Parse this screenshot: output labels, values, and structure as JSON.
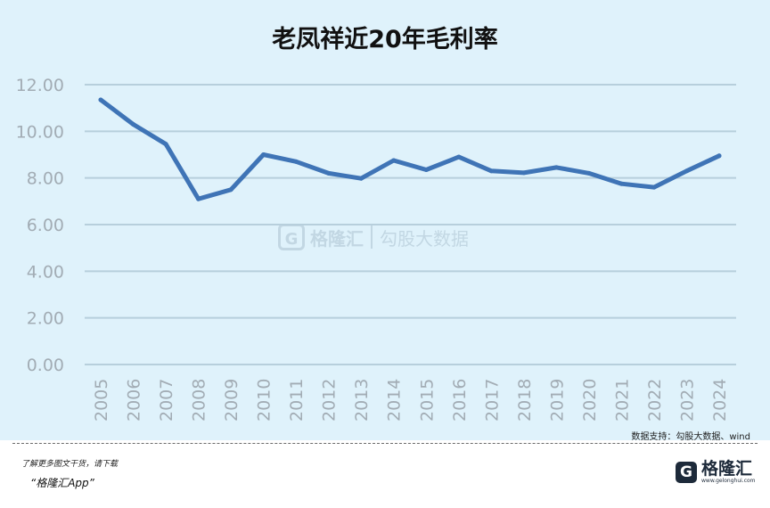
{
  "chart_data": {
    "type": "line",
    "title": "老凤祥近20年毛利率",
    "x": [
      "2005",
      "2006",
      "2007",
      "2008",
      "2009",
      "2010",
      "2011",
      "2012",
      "2013",
      "2014",
      "2015",
      "2016",
      "2017",
      "2018",
      "2019",
      "2020",
      "2021",
      "2022",
      "2023",
      "2024"
    ],
    "series": [
      {
        "values": [
          11.35,
          10.3,
          9.45,
          7.1,
          7.5,
          9.0,
          8.7,
          8.2,
          7.98,
          8.75,
          8.35,
          8.9,
          8.3,
          8.22,
          8.45,
          8.2,
          7.75,
          7.6,
          8.3,
          8.95
        ]
      }
    ],
    "yticks": [
      "0.00",
      "2.00",
      "4.00",
      "6.00",
      "8.00",
      "10.00",
      "12.00"
    ],
    "ylim": [
      0,
      12
    ],
    "grid": true,
    "line_color": "#3f74b6",
    "grid_color": "#b7cfdc"
  },
  "source_text": "数据支持：勾股大数据、wind",
  "footer": {
    "note": "了解更多图文干货，请下载",
    "app": "“格隆汇App”"
  },
  "logo": {
    "mark": "G",
    "text": "格隆汇",
    "sub": "www.gelonghui.com"
  },
  "watermark": {
    "mark": "G",
    "text": "格隆汇",
    "text2": "勾股大数据"
  }
}
